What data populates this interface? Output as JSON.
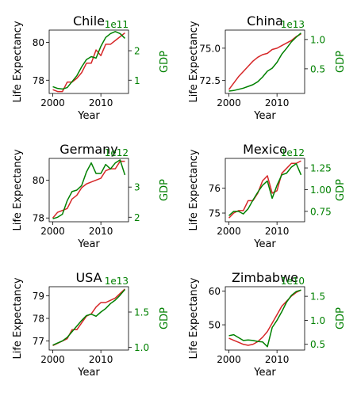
{
  "colors": {
    "life": "#d62728",
    "gdp": "#008000",
    "axis": "#000000"
  },
  "chart_data": [
    {
      "type": "line",
      "title": "Chile",
      "xlabel": "Year",
      "ylabel": "Life Expectancy",
      "y2label": "GDP",
      "y2_exponent": "1e11",
      "x": [
        2000,
        2001,
        2002,
        2003,
        2004,
        2005,
        2006,
        2007,
        2008,
        2009,
        2010,
        2011,
        2012,
        2013,
        2014,
        2015
      ],
      "xlim": [
        1999.25,
        2015.75
      ],
      "xticks": [
        2000,
        2010
      ],
      "ylim": [
        77.3,
        80.65
      ],
      "yticks": [
        78,
        80
      ],
      "y2lim": [
        0.55,
        2.7
      ],
      "y2ticks": [
        1,
        2
      ],
      "series": [
        {
          "axis": "left",
          "color_key": "life",
          "values": [
            77.5,
            77.4,
            77.4,
            77.9,
            77.9,
            78.1,
            78.4,
            78.9,
            78.9,
            79.6,
            79.3,
            79.9,
            79.9,
            80.1,
            80.3,
            80.5
          ]
        },
        {
          "axis": "right",
          "color_key": "gdp",
          "values": [
            0.78,
            0.72,
            0.7,
            0.75,
            0.95,
            1.15,
            1.45,
            1.7,
            1.8,
            1.75,
            2.15,
            2.45,
            2.58,
            2.65,
            2.58,
            2.42
          ]
        }
      ]
    },
    {
      "type": "line",
      "title": "China",
      "xlabel": "Year",
      "ylabel": "Life Expectancy",
      "y2label": "GDP",
      "y2_exponent": "1e13",
      "x": [
        2000,
        2001,
        2002,
        2003,
        2004,
        2005,
        2006,
        2007,
        2008,
        2009,
        2010,
        2011,
        2012,
        2013,
        2014,
        2015
      ],
      "xlim": [
        1999.25,
        2015.75
      ],
      "xticks": [
        2000,
        2010
      ],
      "ylim": [
        71.5,
        76.4
      ],
      "yticks": [
        72.5,
        75.0
      ],
      "y2lim": [
        0.08,
        1.16
      ],
      "y2ticks": [
        0.5,
        1.0
      ],
      "series": [
        {
          "axis": "left",
          "color_key": "life",
          "values": [
            71.8,
            72.3,
            72.8,
            73.2,
            73.6,
            74.0,
            74.3,
            74.5,
            74.6,
            74.9,
            75.0,
            75.2,
            75.4,
            75.6,
            75.9,
            76.1
          ]
        },
        {
          "axis": "right",
          "color_key": "gdp",
          "values": [
            0.12,
            0.13,
            0.15,
            0.17,
            0.2,
            0.23,
            0.28,
            0.36,
            0.46,
            0.51,
            0.61,
            0.75,
            0.85,
            0.96,
            1.04,
            1.11
          ]
        }
      ]
    },
    {
      "type": "line",
      "title": "Germany",
      "xlabel": "Year",
      "ylabel": "Life Expectancy",
      "y2label": "GDP",
      "y2_exponent": "1e12",
      "x": [
        2000,
        2001,
        2002,
        2003,
        2004,
        2005,
        2006,
        2007,
        2008,
        2009,
        2010,
        2011,
        2012,
        2013,
        2014,
        2015
      ],
      "xlim": [
        1999.25,
        2015.75
      ],
      "xticks": [
        2000,
        2010
      ],
      "ylim": [
        77.8,
        81.15
      ],
      "yticks": [
        78,
        80
      ],
      "y2lim": [
        1.85,
        3.95
      ],
      "y2ticks": [
        2,
        3
      ],
      "series": [
        {
          "axis": "left",
          "color_key": "life",
          "values": [
            78.0,
            78.3,
            78.4,
            78.5,
            79.0,
            79.2,
            79.6,
            79.8,
            79.9,
            80.0,
            80.1,
            80.5,
            80.6,
            80.6,
            81.0,
            81.0
          ]
        },
        {
          "axis": "right",
          "color_key": "gdp",
          "values": [
            1.95,
            2.0,
            2.1,
            2.55,
            2.85,
            2.9,
            3.05,
            3.5,
            3.8,
            3.45,
            3.45,
            3.75,
            3.6,
            3.8,
            3.9,
            3.4
          ]
        }
      ]
    },
    {
      "type": "line",
      "title": "Mexico",
      "xlabel": "Year",
      "ylabel": "Life Expectancy",
      "y2label": "GDP",
      "y2_exponent": "1e12",
      "x": [
        2000,
        2001,
        2002,
        2003,
        2004,
        2005,
        2006,
        2007,
        2008,
        2009,
        2010,
        2011,
        2012,
        2013,
        2014,
        2015
      ],
      "xlim": [
        1999.25,
        2015.75
      ],
      "xticks": [
        2000,
        2010
      ],
      "ylim": [
        74.65,
        77.2
      ],
      "yticks": [
        75,
        76
      ],
      "y2lim": [
        0.63,
        1.36
      ],
      "y2ticks": [
        0.75,
        1.0,
        1.25
      ],
      "series": [
        {
          "axis": "left",
          "color_key": "life",
          "values": [
            74.8,
            75.0,
            75.1,
            75.1,
            75.5,
            75.5,
            75.8,
            76.3,
            76.5,
            75.8,
            75.9,
            76.6,
            76.8,
            77.0,
            77.0,
            77.1
          ]
        },
        {
          "axis": "right",
          "color_key": "gdp",
          "values": [
            0.7,
            0.75,
            0.75,
            0.72,
            0.78,
            0.88,
            0.97,
            1.05,
            1.1,
            0.9,
            1.05,
            1.17,
            1.19,
            1.26,
            1.3,
            1.17
          ]
        }
      ]
    },
    {
      "type": "line",
      "title": "USA",
      "xlabel": "Year",
      "ylabel": "Life Expectancy",
      "y2label": "GDP",
      "y2_exponent": "1e13",
      "x": [
        2000,
        2001,
        2002,
        2003,
        2004,
        2005,
        2006,
        2007,
        2008,
        2009,
        2010,
        2011,
        2012,
        2013,
        2014,
        2015
      ],
      "xlim": [
        1999.25,
        2015.75
      ],
      "xticks": [
        2000,
        2010
      ],
      "ylim": [
        76.6,
        79.4
      ],
      "yticks": [
        77,
        78,
        79
      ],
      "y2lim": [
        0.96,
        1.86
      ],
      "y2ticks": [
        1.0,
        1.5
      ],
      "series": [
        {
          "axis": "left",
          "color_key": "life",
          "values": [
            76.8,
            76.9,
            77.0,
            77.1,
            77.5,
            77.5,
            77.8,
            78.1,
            78.2,
            78.5,
            78.7,
            78.7,
            78.8,
            78.9,
            79.1,
            79.3
          ]
        },
        {
          "axis": "right",
          "color_key": "gdp",
          "values": [
            1.03,
            1.06,
            1.09,
            1.14,
            1.22,
            1.3,
            1.38,
            1.45,
            1.47,
            1.44,
            1.5,
            1.55,
            1.62,
            1.67,
            1.74,
            1.82
          ]
        }
      ]
    },
    {
      "type": "line",
      "title": "Zimbabwe",
      "xlabel": "Year",
      "ylabel": "Life Expectancy",
      "y2label": "GDP",
      "y2_exponent": "1e10",
      "x": [
        2000,
        2001,
        2002,
        2003,
        2004,
        2005,
        2006,
        2007,
        2008,
        2009,
        2010,
        2011,
        2012,
        2013,
        2014,
        2015
      ],
      "xlim": [
        1999.25,
        2015.75
      ],
      "xticks": [
        2000,
        2010
      ],
      "ylim": [
        42.5,
        61.3
      ],
      "yticks": [
        50,
        60
      ],
      "y2lim": [
        0.38,
        1.7
      ],
      "y2ticks": [
        0.5,
        1.0,
        1.5
      ],
      "series": [
        {
          "axis": "left",
          "color_key": "life",
          "values": [
            46.0,
            45.4,
            44.8,
            44.2,
            43.9,
            44.2,
            45.0,
            46.3,
            48.0,
            50.5,
            53.0,
            55.5,
            57.0,
            58.5,
            59.6,
            60.3
          ]
        },
        {
          "axis": "right",
          "color_key": "gdp",
          "values": [
            0.68,
            0.7,
            0.64,
            0.58,
            0.59,
            0.58,
            0.56,
            0.55,
            0.45,
            0.85,
            1.0,
            1.18,
            1.38,
            1.52,
            1.6,
            1.63
          ]
        }
      ]
    }
  ]
}
